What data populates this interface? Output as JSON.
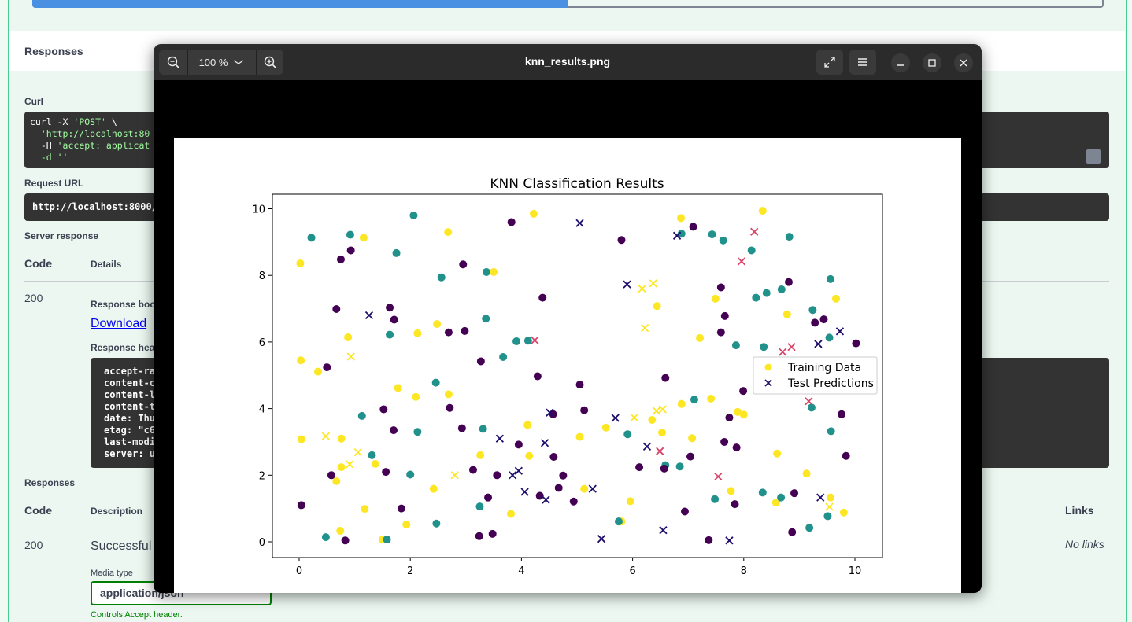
{
  "page": {
    "responses_title": "Responses",
    "curl_label": "Curl",
    "curl_line1_pre": "curl -X ",
    "curl_line1_str": "'POST'",
    "curl_line1_post": " \\",
    "curl_line2": "  'http://localhost:80",
    "curl_line3_pre": "  -H ",
    "curl_line3_str": "'accept: applicat",
    "curl_line4": "  -d ''",
    "request_url_label": "Request URL",
    "request_url": "http://localhost:8000/",
    "server_response_label": "Server response",
    "col_code": "Code",
    "col_details": "Details",
    "code_200": "200",
    "response_body_label": "Response boo",
    "download_link": "Download",
    "response_headers_label": "Response hea",
    "headers_text": "accept-ra\ncontent-c\ncontent-l\ncontent-t\ndate: Thu\netag: \"c6\nlast-modi\nserver: u",
    "responses2_label": "Responses",
    "col_code2": "Code",
    "col_description": "Description",
    "col_links": "Links",
    "code2_200": "200",
    "successful": "Successful",
    "no_links": "No links",
    "media_type_label": "Media type",
    "media_type_value": "application/json",
    "controls_accept": "Controls Accept header."
  },
  "viewer": {
    "zoom_level": "100 %",
    "filename": "knn_results.png",
    "icons": [
      "zoom-out-icon",
      "chevron-down-icon",
      "zoom-in-icon",
      "fullscreen-icon",
      "menu-icon",
      "minimize-icon",
      "maximize-icon",
      "close-icon"
    ]
  },
  "chart_data": {
    "type": "scatter",
    "title": "KNN Classification Results",
    "xlim": [
      -0.5,
      10.5
    ],
    "ylim": [
      -0.5,
      10.4
    ],
    "xticks": [
      "0",
      "2",
      "4",
      "6",
      "8",
      "10"
    ],
    "yticks": [
      "0",
      "2",
      "4",
      "6",
      "8",
      "10"
    ],
    "grid": false,
    "legend_placement": "center-right",
    "class_colors": [
      "#440154",
      "#21918c",
      "#fde725"
    ],
    "series": [
      {
        "name": "Training Data",
        "marker": "circle",
        "points": [
          [
            0.02,
            8.36,
            2
          ],
          [
            0.03,
            5.45,
            2
          ],
          [
            0.04,
            3.08,
            2
          ],
          [
            0.34,
            5.11,
            2
          ],
          [
            0.67,
            1.82,
            2
          ],
          [
            0.74,
            0.33,
            2
          ],
          [
            0.76,
            3.1,
            2
          ],
          [
            0.76,
            2.24,
            2
          ],
          [
            0.88,
            6.14,
            2
          ],
          [
            1.16,
            9.13,
            2
          ],
          [
            1.18,
            0.99,
            2
          ],
          [
            1.37,
            2.34,
            2
          ],
          [
            1.5,
            0.07,
            2
          ],
          [
            1.78,
            4.62,
            2
          ],
          [
            1.93,
            0.52,
            2
          ],
          [
            2.1,
            4.35,
            2
          ],
          [
            2.13,
            6.26,
            2
          ],
          [
            2.42,
            1.59,
            2
          ],
          [
            2.48,
            6.54,
            2
          ],
          [
            2.68,
            9.3,
            2
          ],
          [
            2.69,
            4.43,
            2
          ],
          [
            3.26,
            2.6,
            2
          ],
          [
            3.5,
            8.1,
            2
          ],
          [
            3.81,
            0.84,
            2
          ],
          [
            4.11,
            3.51,
            2
          ],
          [
            4.14,
            2.58,
            2
          ],
          [
            4.22,
            9.85,
            2
          ],
          [
            5.05,
            3.15,
            2
          ],
          [
            5.13,
            1.59,
            2
          ],
          [
            5.52,
            3.43,
            2
          ],
          [
            5.8,
            0.61,
            2
          ],
          [
            5.96,
            1.22,
            2
          ],
          [
            6.35,
            3.66,
            2
          ],
          [
            6.44,
            7.08,
            2
          ],
          [
            6.53,
            3.28,
            2
          ],
          [
            6.87,
            9.72,
            2
          ],
          [
            6.88,
            4.14,
            2
          ],
          [
            7.07,
            3.11,
            2
          ],
          [
            7.21,
            6.12,
            2
          ],
          [
            7.41,
            4.3,
            2
          ],
          [
            7.49,
            7.3,
            2
          ],
          [
            7.77,
            1.53,
            2
          ],
          [
            7.89,
            3.9,
            2
          ],
          [
            8.0,
            3.82,
            2
          ],
          [
            8.34,
            9.94,
            2
          ],
          [
            8.58,
            1.18,
            2
          ],
          [
            8.6,
            2.65,
            2
          ],
          [
            8.78,
            6.83,
            2
          ],
          [
            9.13,
            2.05,
            2
          ],
          [
            9.56,
            1.33,
            2
          ],
          [
            9.66,
            7.3,
            2
          ],
          [
            9.8,
            0.88,
            2
          ],
          [
            0.22,
            9.13,
            1
          ],
          [
            0.48,
            0.14,
            1
          ],
          [
            0.92,
            9.22,
            1
          ],
          [
            1.13,
            3.78,
            1
          ],
          [
            1.31,
            2.6,
            1
          ],
          [
            1.58,
            0.07,
            1
          ],
          [
            1.63,
            6.22,
            1
          ],
          [
            1.75,
            8.67,
            1
          ],
          [
            2.0,
            2.02,
            1
          ],
          [
            2.06,
            9.8,
            1
          ],
          [
            2.13,
            3.3,
            1
          ],
          [
            2.46,
            4.78,
            1
          ],
          [
            2.47,
            0.55,
            1
          ],
          [
            2.56,
            7.94,
            1
          ],
          [
            3.25,
            1.06,
            1
          ],
          [
            3.31,
            3.39,
            1
          ],
          [
            3.36,
            6.7,
            1
          ],
          [
            3.37,
            8.1,
            1
          ],
          [
            3.67,
            5.55,
            1
          ],
          [
            3.91,
            6.02,
            1
          ],
          [
            4.12,
            6.04,
            1
          ],
          [
            5.75,
            0.61,
            1
          ],
          [
            5.91,
            3.23,
            1
          ],
          [
            6.59,
            2.3,
            1
          ],
          [
            6.85,
            2.26,
            1
          ],
          [
            6.88,
            9.25,
            1
          ],
          [
            7.11,
            4.27,
            1
          ],
          [
            7.43,
            9.23,
            1
          ],
          [
            7.48,
            1.28,
            1
          ],
          [
            7.63,
            9.05,
            1
          ],
          [
            7.86,
            5.9,
            1
          ],
          [
            8.14,
            8.75,
            1
          ],
          [
            8.22,
            7.33,
            1
          ],
          [
            8.34,
            1.48,
            1
          ],
          [
            8.41,
            7.47,
            1
          ],
          [
            8.67,
            1.33,
            1
          ],
          [
            8.68,
            7.58,
            1
          ],
          [
            8.82,
            9.16,
            1
          ],
          [
            9.18,
            0.42,
            1
          ],
          [
            9.22,
            4.03,
            1
          ],
          [
            9.24,
            6.96,
            1
          ],
          [
            9.51,
            0.77,
            1
          ],
          [
            9.54,
            6.13,
            1
          ],
          [
            9.56,
            7.89,
            1
          ],
          [
            9.57,
            3.32,
            1
          ],
          [
            8.36,
            5.85,
            1
          ],
          [
            0.04,
            1.1,
            0
          ],
          [
            0.5,
            5.24,
            0
          ],
          [
            0.58,
            2.0,
            0
          ],
          [
            0.67,
            6.99,
            0
          ],
          [
            0.75,
            8.48,
            0
          ],
          [
            0.83,
            0.04,
            0
          ],
          [
            0.93,
            8.75,
            0
          ],
          [
            1.52,
            3.98,
            0
          ],
          [
            1.56,
            2.1,
            0
          ],
          [
            1.63,
            7.03,
            0
          ],
          [
            1.7,
            3.35,
            0
          ],
          [
            1.71,
            6.67,
            0
          ],
          [
            1.84,
            1.0,
            0
          ],
          [
            2.69,
            6.29,
            0
          ],
          [
            2.71,
            4.02,
            0
          ],
          [
            2.93,
            3.41,
            0
          ],
          [
            2.95,
            8.33,
            0
          ],
          [
            2.98,
            6.33,
            0
          ],
          [
            3.13,
            2.16,
            0
          ],
          [
            3.24,
            0.17,
            0
          ],
          [
            3.27,
            5.42,
            0
          ],
          [
            3.4,
            1.33,
            0
          ],
          [
            3.48,
            0.24,
            0
          ],
          [
            3.56,
            2.0,
            0
          ],
          [
            3.82,
            9.6,
            0
          ],
          [
            3.95,
            2.92,
            0
          ],
          [
            4.29,
            4.97,
            0
          ],
          [
            4.33,
            1.38,
            0
          ],
          [
            4.38,
            7.33,
            0
          ],
          [
            4.57,
            3.83,
            0
          ],
          [
            4.58,
            2.55,
            0
          ],
          [
            4.67,
            1.62,
            0
          ],
          [
            4.75,
            1.99,
            0
          ],
          [
            4.94,
            1.21,
            0
          ],
          [
            5.05,
            4.72,
            0
          ],
          [
            5.13,
            3.95,
            0
          ],
          [
            5.8,
            9.06,
            0
          ],
          [
            6.12,
            2.24,
            0
          ],
          [
            6.57,
            2.2,
            0
          ],
          [
            6.59,
            4.92,
            0
          ],
          [
            6.94,
            0.91,
            0
          ],
          [
            7.04,
            2.56,
            0
          ],
          [
            7.09,
            9.46,
            0
          ],
          [
            7.37,
            0.05,
            0
          ],
          [
            7.59,
            7.64,
            0
          ],
          [
            7.59,
            6.29,
            0
          ],
          [
            7.65,
            3.0,
            0
          ],
          [
            7.66,
            6.78,
            0
          ],
          [
            7.74,
            3.73,
            0
          ],
          [
            7.84,
            1.13,
            0
          ],
          [
            7.87,
            2.83,
            0
          ],
          [
            7.99,
            4.53,
            0
          ],
          [
            8.81,
            7.8,
            0
          ],
          [
            8.87,
            0.29,
            0
          ],
          [
            8.91,
            1.46,
            0
          ],
          [
            9.28,
            6.58,
            0
          ],
          [
            9.44,
            6.68,
            0
          ],
          [
            9.76,
            3.83,
            0
          ],
          [
            9.84,
            2.58,
            0
          ],
          [
            10.02,
            5.96,
            0
          ]
        ]
      },
      {
        "name": "Test Predictions",
        "marker": "x",
        "points": [
          [
            0.48,
            3.17,
            "#fde725"
          ],
          [
            0.91,
            2.33,
            "#fde725"
          ],
          [
            0.93,
            5.56,
            "#fde725"
          ],
          [
            1.06,
            2.69,
            "#fde725"
          ],
          [
            1.26,
            6.8,
            "#1f0c6b"
          ],
          [
            2.8,
            2.0,
            "#fde725"
          ],
          [
            3.61,
            3.1,
            "#1f0c6b"
          ],
          [
            3.84,
            2.0,
            "#1f0c6b"
          ],
          [
            3.95,
            2.13,
            "#1f0c6b"
          ],
          [
            4.06,
            1.5,
            "#1f0c6b"
          ],
          [
            4.24,
            6.05,
            "#d9456a"
          ],
          [
            4.42,
            2.97,
            "#1f0c6b"
          ],
          [
            4.44,
            1.26,
            "#1f0c6b"
          ],
          [
            4.51,
            3.88,
            "#1f0c6b"
          ],
          [
            5.05,
            9.57,
            "#1f0c6b"
          ],
          [
            5.28,
            1.59,
            "#1f0c6b"
          ],
          [
            5.44,
            0.09,
            "#1f0c6b"
          ],
          [
            5.69,
            3.72,
            "#1f0c6b"
          ],
          [
            5.9,
            7.73,
            "#1f0c6b"
          ],
          [
            6.03,
            3.73,
            "#fde725"
          ],
          [
            6.17,
            7.6,
            "#fde725"
          ],
          [
            6.22,
            6.42,
            "#fde725"
          ],
          [
            6.26,
            2.86,
            "#1f0c6b"
          ],
          [
            6.37,
            7.76,
            "#fde725"
          ],
          [
            6.43,
            3.93,
            "#fde725"
          ],
          [
            6.49,
            2.72,
            "#d9456a"
          ],
          [
            6.54,
            3.98,
            "#fde725"
          ],
          [
            6.55,
            0.35,
            "#1f0c6b"
          ],
          [
            6.8,
            9.19,
            "#1f0c6b"
          ],
          [
            7.54,
            1.96,
            "#d9456a"
          ],
          [
            7.74,
            0.04,
            "#1f0c6b"
          ],
          [
            7.96,
            8.42,
            "#d9456a"
          ],
          [
            8.19,
            9.31,
            "#d9456a"
          ],
          [
            8.7,
            5.7,
            "#d9456a"
          ],
          [
            8.86,
            5.85,
            "#d9456a"
          ],
          [
            9.17,
            4.22,
            "#d9456a"
          ],
          [
            9.34,
            5.94,
            "#1f0c6b"
          ],
          [
            9.38,
            1.33,
            "#1f0c6b"
          ],
          [
            9.54,
            1.05,
            "#fde725"
          ],
          [
            9.73,
            6.32,
            "#1f0c6b"
          ]
        ]
      }
    ]
  }
}
